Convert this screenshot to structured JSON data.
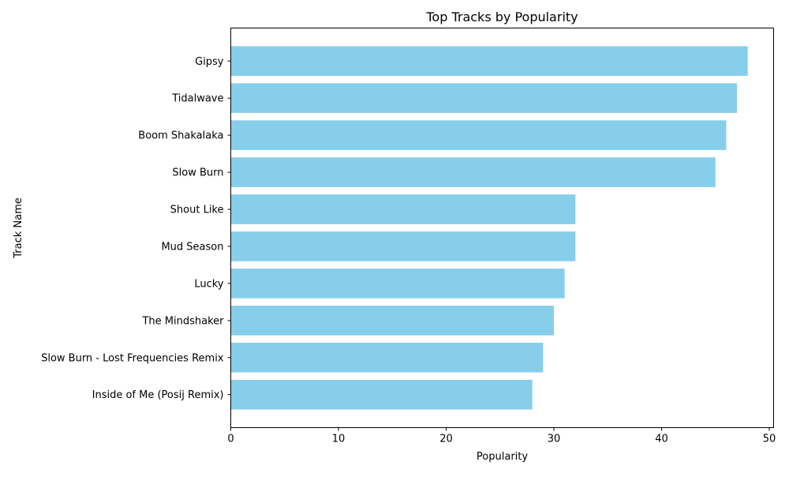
{
  "chart_data": {
    "type": "bar",
    "orientation": "horizontal",
    "title": "Top Tracks by Popularity",
    "xlabel": "Popularity",
    "ylabel": "Track Name",
    "xlim": [
      0,
      50
    ],
    "xticks": [
      0,
      10,
      20,
      30,
      40,
      50
    ],
    "grid": false,
    "bar_color": "#87CEEB",
    "categories": [
      "Gipsy",
      "Tidalwave",
      "Boom Shakalaka",
      "Slow Burn",
      "Shout Like",
      "Mud Season",
      "Lucky",
      "The Mindshaker",
      "Slow Burn - Lost Frequencies Remix",
      "Inside of Me (Posij Remix)"
    ],
    "values": [
      48,
      47,
      46,
      45,
      32,
      32,
      31,
      30,
      29,
      28
    ]
  }
}
